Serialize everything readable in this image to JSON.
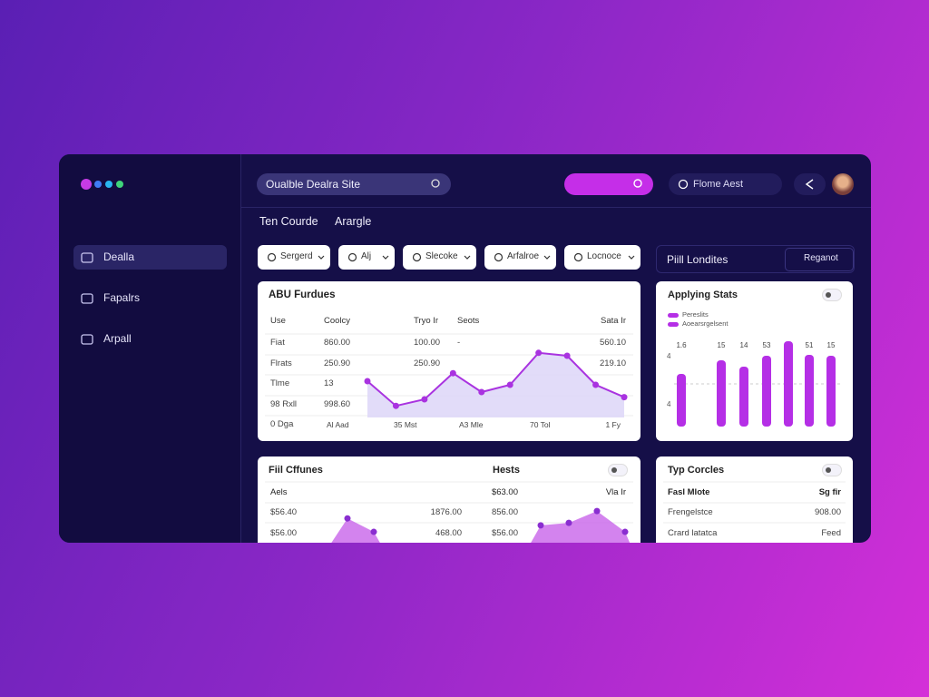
{
  "sidebar": {
    "nav": [
      "Dealla",
      "Fapalrs",
      "Arpall"
    ]
  },
  "topbar": {
    "search": "Oualble Dealra Site",
    "pill": "Flome Aest"
  },
  "tabs": [
    "Ten Courde",
    "Arargle"
  ],
  "filters": [
    "Sergerd",
    "Alj",
    "Slecoke",
    "Arfalroe",
    "Locnoce"
  ],
  "side_header": {
    "title": "Piill Londites",
    "button": "Reganot"
  },
  "cards": [
    {
      "title": "ABU Furdues",
      "columns": [
        "Use",
        "Coolcy",
        "Tryo Ir",
        "Seots",
        "Sata Ir"
      ],
      "rows": [
        [
          "Fiat",
          "860.00",
          "100.00",
          "-",
          "560.10"
        ],
        [
          "Flrats",
          "250.90",
          "250.90",
          null,
          "219.10"
        ],
        [
          "Tlme",
          "13",
          null,
          null,
          null
        ],
        [
          "98 Rxll",
          "998.60",
          null,
          null,
          null
        ]
      ],
      "axis_caption": "0 Dga",
      "chart": {
        "type": "line",
        "x_labels": [
          "Al Aad",
          "35 Mst",
          "A3 Mle",
          "70 Tol",
          "1 Fy"
        ],
        "values": [
          50,
          16,
          25,
          61,
          35,
          45,
          89,
          85,
          45,
          28
        ],
        "color": "#a933e0",
        "ylim": [
          0,
          100
        ]
      }
    },
    {
      "title": "Applying Stats",
      "legend": [
        "Pereslits",
        "Aoearsrgelsent"
      ],
      "y_labels": [
        "4",
        "4"
      ],
      "chart": {
        "type": "bar",
        "labels": [
          "1.6",
          "15",
          "14",
          "53",
          null,
          "51",
          "15"
        ],
        "values": [
          58,
          73,
          66,
          78,
          94,
          79,
          78
        ],
        "color": "#b52fe6",
        "ylim": [
          0,
          100
        ]
      }
    },
    {
      "title": "Fiil Cffunes",
      "heading": "Hests",
      "columns": [
        "Aels",
        "$63.00",
        "Vla Ir"
      ],
      "rows": [
        [
          "$56.40",
          "1876.00",
          "856.00"
        ],
        [
          "$56.00",
          "468.00",
          "$56.00"
        ]
      ],
      "chart": {
        "type": "area",
        "series": [
          {
            "values": [
              64,
              31
            ]
          },
          {
            "values": [
              47,
              53,
              82,
              31
            ]
          }
        ],
        "color": "#c45ae8",
        "ylim": [
          0,
          100
        ]
      }
    },
    {
      "title": "Typ Corcles",
      "columns": [
        "Fasl Mlote",
        "Sg fir"
      ],
      "rows": [
        [
          "Frengelstce",
          "908.00"
        ],
        [
          "Crard latatca",
          "Feed"
        ]
      ]
    }
  ]
}
